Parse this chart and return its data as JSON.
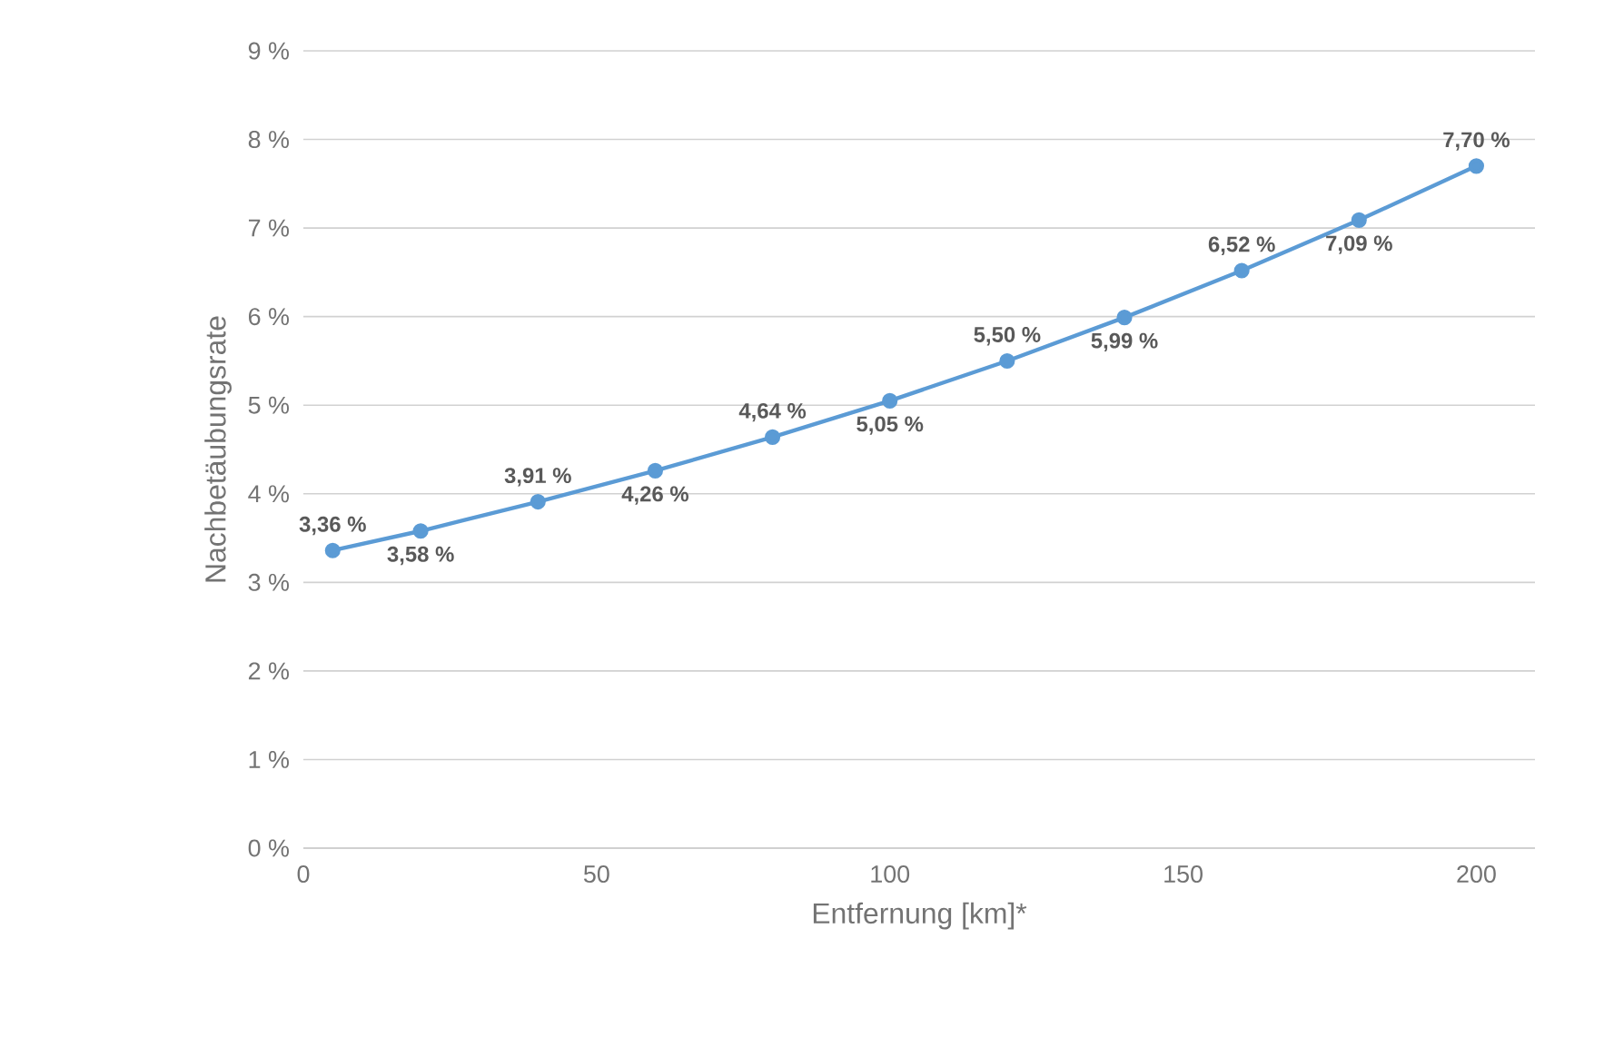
{
  "chart_data": {
    "type": "line",
    "xlabel": "Entfernung [km]*",
    "ylabel": "Nachbetäubungsrate",
    "x": [
      5,
      20,
      40,
      60,
      80,
      100,
      120,
      140,
      160,
      180,
      200
    ],
    "series": [
      {
        "color": "#5b9bd5",
        "values": [
          3.36,
          3.58,
          3.91,
          4.26,
          4.64,
          5.05,
          5.5,
          5.99,
          6.52,
          7.09,
          7.7
        ],
        "value_labels": [
          "3,36 %",
          "3,58 %",
          "3,91 %",
          "4,26 %",
          "4,64 %",
          "5,05 %",
          "5,50 %",
          "5,99 %",
          "6,52 %",
          "7,09 %",
          "7,70 %"
        ]
      }
    ],
    "xlim": [
      0,
      210
    ],
    "xticks": [
      0,
      50,
      100,
      150,
      200
    ],
    "ylim": [
      0,
      9
    ],
    "yticks": [
      {
        "value": 0,
        "label": "0 %"
      },
      {
        "value": 1,
        "label": "1 %"
      },
      {
        "value": 2,
        "label": "2 %"
      },
      {
        "value": 3,
        "label": "3 %"
      },
      {
        "value": 4,
        "label": "4 %"
      },
      {
        "value": 5,
        "label": "5 %"
      },
      {
        "value": 6,
        "label": "6 %"
      },
      {
        "value": 7,
        "label": "7 %"
      },
      {
        "value": 8,
        "label": "8 %"
      },
      {
        "value": 9,
        "label": "9 %"
      }
    ],
    "grid": "y",
    "marker": "circle",
    "line_style": "solid"
  }
}
